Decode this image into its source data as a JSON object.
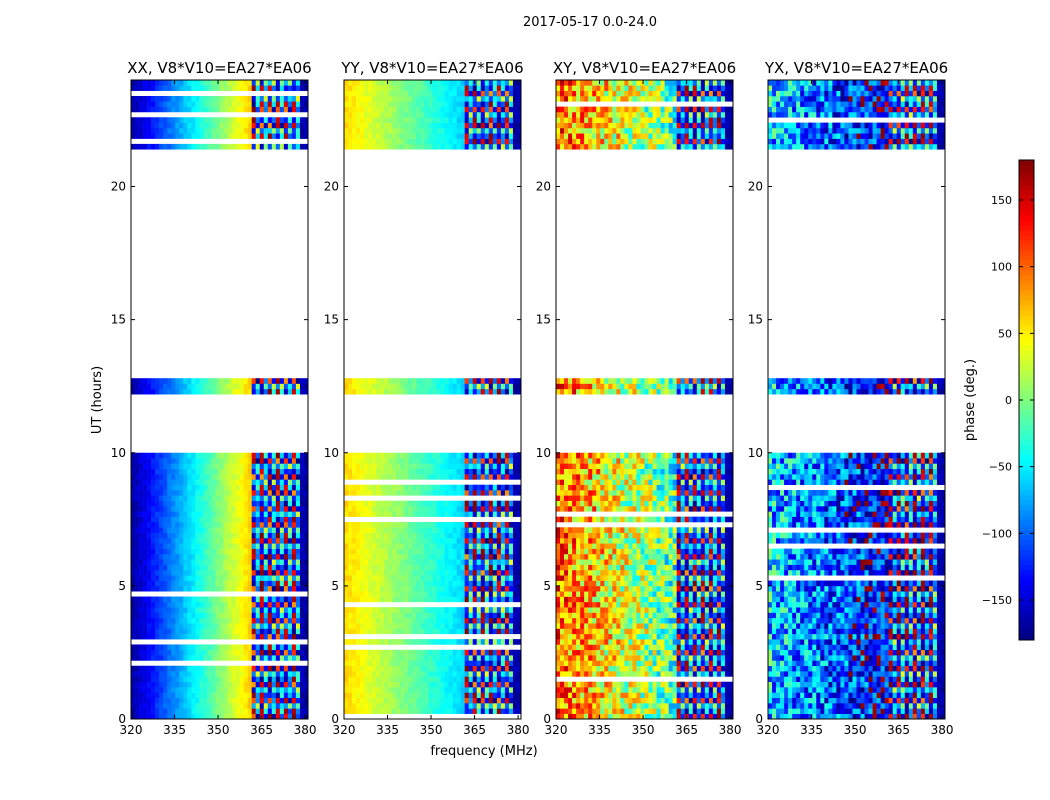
{
  "suptitle": "2017-05-17 0.0-24.0",
  "chart_data": [
    {
      "type": "heatmap",
      "title": "XX, V8*V10=EA27*EA06",
      "xlabel": "frequency (MHz)",
      "ylabel": "UT (hours)",
      "xlim": [
        320,
        381
      ],
      "ylim": [
        0,
        24
      ],
      "xticks": [
        320,
        335,
        350,
        365,
        380
      ],
      "yticks": [
        0,
        5,
        10,
        15,
        20
      ],
      "flagged_gap_hours": [
        [
          9.9,
          12.2
        ],
        [
          12.8,
          21.3
        ]
      ],
      "band_edge_mhz": 361,
      "phase_profile": {
        "start_deg": -170,
        "end_deg": 60,
        "pattern": "smooth gradient, wrapped fringes above band edge"
      }
    },
    {
      "type": "heatmap",
      "title": "YY, V8*V10=EA27*EA06",
      "xlabel": "frequency (MHz)",
      "ylabel": "",
      "xlim": [
        320,
        381
      ],
      "ylim": [
        0,
        24
      ],
      "xticks": [
        320,
        335,
        350,
        365,
        380
      ],
      "yticks": [
        0,
        5,
        10,
        15,
        20
      ],
      "flagged_gap_hours": [
        [
          9.9,
          12.2
        ],
        [
          12.8,
          21.3
        ]
      ],
      "band_edge_mhz": 361,
      "phase_profile": {
        "start_deg": 60,
        "end_deg": -60,
        "pattern": "smooth gradient, wrapped fringes above band edge"
      }
    },
    {
      "type": "heatmap",
      "title": "XY, V8*V10=EA27*EA06",
      "xlabel": "",
      "ylabel": "",
      "xlim": [
        320,
        381
      ],
      "ylim": [
        0,
        24
      ],
      "xticks": [
        320,
        335,
        350,
        365,
        380
      ],
      "yticks": [
        0,
        5,
        10,
        15,
        20
      ],
      "flagged_gap_hours": [
        [
          9.9,
          12.2
        ],
        [
          12.8,
          21.3
        ]
      ],
      "band_edge_mhz": 361,
      "phase_profile": {
        "start_deg": 100,
        "end_deg": -20,
        "pattern": "noisy"
      }
    },
    {
      "type": "heatmap",
      "title": "YX, V8*V10=EA27*EA06",
      "xlabel": "",
      "ylabel": "",
      "xlim": [
        320,
        381
      ],
      "ylim": [
        0,
        24
      ],
      "xticks": [
        320,
        335,
        350,
        365,
        380
      ],
      "yticks": [
        0,
        5,
        10,
        15,
        20
      ],
      "flagged_gap_hours": [
        [
          9.9,
          12.2
        ],
        [
          12.8,
          21.3
        ]
      ],
      "band_edge_mhz": 361,
      "phase_profile": {
        "start_deg": -60,
        "end_deg": -140,
        "pattern": "noisy"
      }
    }
  ],
  "colorbar": {
    "label": "phase (deg.)",
    "range": [
      -180,
      180
    ],
    "ticks": [
      150,
      100,
      50,
      0,
      -50,
      -100,
      -150
    ],
    "tick_labels": [
      "150",
      "100",
      "50",
      "0",
      "−50",
      "−100",
      "−150"
    ],
    "colormap": "jet"
  }
}
